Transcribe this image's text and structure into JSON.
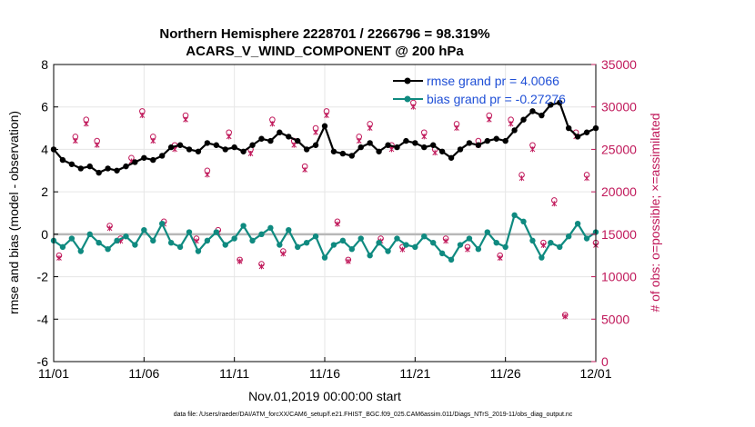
{
  "chart_data": {
    "type": "line",
    "title_line1": "Northern Hemisphere 2228701 / 2266796 = 98.319%",
    "title_line2": "ACARS_V_WIND_COMPONENT @ 200 hPa",
    "xlabel": "Nov.01,2019 00:00:00 start",
    "ylabel_left": "rmse and bias (model - observation)",
    "ylabel_right": "# of obs: o=possible; ×=assimilated",
    "xlim": [
      0,
      30
    ],
    "ylim_left": [
      -6,
      8
    ],
    "ylim_right": [
      0,
      35000
    ],
    "x_ticks": [
      {
        "pos": 0,
        "label": "11/01"
      },
      {
        "pos": 5,
        "label": "11/06"
      },
      {
        "pos": 10,
        "label": "11/11"
      },
      {
        "pos": 15,
        "label": "11/16"
      },
      {
        "pos": 20,
        "label": "11/21"
      },
      {
        "pos": 25,
        "label": "11/26"
      },
      {
        "pos": 30,
        "label": "12/01"
      }
    ],
    "y_ticks_left": [
      "-6",
      "-4",
      "-2",
      "0",
      "2",
      "4",
      "6",
      "8"
    ],
    "y_ticks_right": [
      "0",
      "5000",
      "10000",
      "15000",
      "20000",
      "25000",
      "30000",
      "35000"
    ],
    "grid": true,
    "legend_position": "top-right",
    "series": [
      {
        "name": "rmse grand pr = 4.0066",
        "color": "#000000",
        "x": [
          0,
          0.5,
          1,
          1.5,
          2,
          2.5,
          3,
          3.5,
          4,
          4.5,
          5,
          5.5,
          6,
          6.5,
          7,
          7.5,
          8,
          8.5,
          9,
          9.5,
          10,
          10.5,
          11,
          11.5,
          12,
          12.5,
          13,
          13.5,
          14,
          14.5,
          15,
          15.5,
          16,
          16.5,
          17,
          17.5,
          18,
          18.5,
          19,
          19.5,
          20,
          20.5,
          21,
          21.5,
          22,
          22.5,
          23,
          23.5,
          24,
          24.5,
          25,
          25.5,
          26,
          26.5,
          27,
          27.5,
          28,
          28.5,
          29,
          29.5,
          30
        ],
        "values": [
          4.0,
          3.5,
          3.3,
          3.1,
          3.2,
          2.9,
          3.1,
          3.0,
          3.2,
          3.4,
          3.6,
          3.5,
          3.7,
          4.1,
          4.2,
          4.0,
          3.9,
          4.3,
          4.2,
          4.0,
          4.1,
          3.9,
          4.2,
          4.5,
          4.4,
          4.8,
          4.6,
          4.4,
          4.0,
          4.2,
          5.1,
          3.9,
          3.8,
          3.7,
          4.1,
          4.3,
          3.9,
          4.2,
          4.1,
          4.4,
          4.3,
          4.1,
          4.2,
          3.9,
          3.6,
          4.0,
          4.3,
          4.2,
          4.4,
          4.5,
          4.4,
          4.9,
          5.4,
          5.8,
          5.6,
          6.1,
          6.2,
          5.0,
          4.6,
          4.8,
          5.0
        ]
      },
      {
        "name": "bias grand pr = -0.27276",
        "color": "#0f8a80",
        "x": [
          0,
          0.5,
          1,
          1.5,
          2,
          2.5,
          3,
          3.5,
          4,
          4.5,
          5,
          5.5,
          6,
          6.5,
          7,
          7.5,
          8,
          8.5,
          9,
          9.5,
          10,
          10.5,
          11,
          11.5,
          12,
          12.5,
          13,
          13.5,
          14,
          14.5,
          15,
          15.5,
          16,
          16.5,
          17,
          17.5,
          18,
          18.5,
          19,
          19.5,
          20,
          20.5,
          21,
          21.5,
          22,
          22.5,
          23,
          23.5,
          24,
          24.5,
          25,
          25.5,
          26,
          26.5,
          27,
          27.5,
          28,
          28.5,
          29,
          29.5,
          30
        ],
        "values": [
          -0.3,
          -0.6,
          -0.2,
          -0.8,
          0.0,
          -0.4,
          -0.7,
          -0.3,
          -0.1,
          -0.5,
          0.2,
          -0.3,
          0.5,
          -0.4,
          -0.6,
          0.1,
          -0.8,
          -0.3,
          0.1,
          -0.5,
          -0.2,
          0.4,
          -0.3,
          0.0,
          0.3,
          -0.5,
          0.2,
          -0.6,
          -0.4,
          -0.1,
          -1.1,
          -0.5,
          -0.3,
          -0.7,
          -0.2,
          -1.0,
          -0.4,
          -0.8,
          -0.2,
          -0.5,
          -0.6,
          -0.1,
          -0.4,
          -0.9,
          -1.2,
          -0.5,
          -0.2,
          -0.7,
          0.1,
          -0.4,
          -0.6,
          0.9,
          0.6,
          -0.3,
          -1.1,
          -0.4,
          -0.6,
          -0.1,
          0.5,
          -0.2,
          0.1
        ]
      }
    ],
    "obs_possible": {
      "marker": "o",
      "color": "#c0185a",
      "x": [
        0.3,
        1.2,
        1.8,
        2.4,
        3.1,
        3.7,
        4.3,
        4.9,
        5.5,
        6.1,
        6.7,
        7.3,
        7.9,
        8.5,
        9.1,
        9.7,
        10.3,
        10.9,
        11.5,
        12.1,
        12.7,
        13.3,
        13.9,
        14.5,
        15.1,
        15.7,
        16.3,
        16.9,
        17.5,
        18.1,
        18.7,
        19.3,
        19.9,
        20.5,
        21.1,
        21.7,
        22.3,
        22.9,
        23.5,
        24.1,
        24.7,
        25.3,
        25.9,
        26.5,
        27.1,
        27.7,
        28.3,
        28.9,
        29.5,
        30.0
      ],
      "values": [
        12500,
        26500,
        28500,
        26000,
        16000,
        14500,
        24000,
        29500,
        26500,
        16500,
        25500,
        29000,
        14500,
        22500,
        15500,
        27000,
        12000,
        25000,
        11500,
        28500,
        13000,
        26000,
        23000,
        27500,
        29500,
        16500,
        12000,
        26500,
        28000,
        14500,
        25500,
        13500,
        30500,
        27000,
        25000,
        14500,
        28000,
        13500,
        26000,
        29000,
        12500,
        28500,
        22000,
        25500,
        14000,
        19000,
        5500,
        27000,
        22000,
        14000
      ]
    },
    "obs_assimilated": {
      "marker": "x",
      "color": "#c0185a",
      "x": [
        0.3,
        1.2,
        1.8,
        2.4,
        3.1,
        3.7,
        4.3,
        4.9,
        5.5,
        6.1,
        6.7,
        7.3,
        7.9,
        8.5,
        9.1,
        9.7,
        10.3,
        10.9,
        11.5,
        12.1,
        12.7,
        13.3,
        13.9,
        14.5,
        15.1,
        15.7,
        16.3,
        16.9,
        17.5,
        18.1,
        18.7,
        19.3,
        19.9,
        20.5,
        21.1,
        21.7,
        22.3,
        22.9,
        23.5,
        24.1,
        24.7,
        25.3,
        25.9,
        26.5,
        27.1,
        27.7,
        28.3,
        28.9,
        29.5,
        30.0
      ],
      "values": [
        12200,
        26000,
        28000,
        25500,
        15700,
        14200,
        23600,
        29000,
        26000,
        16200,
        25000,
        28500,
        14200,
        22000,
        15200,
        26500,
        11800,
        24500,
        11200,
        28000,
        12700,
        25500,
        22600,
        27000,
        29000,
        16200,
        11800,
        26000,
        27500,
        14200,
        25000,
        13200,
        30000,
        26500,
        24600,
        14200,
        27500,
        13200,
        25500,
        28500,
        12200,
        28000,
        21600,
        25000,
        13700,
        18600,
        5300,
        26500,
        21600,
        13700
      ]
    },
    "footer": "data file: /Users/raeder/DAI/ATM_forcXX/CAM6_setup/f.e21.FHIST_BGC.f09_025.CAM6assim.011/Diags_NTrS_2019-11/obs_diag_output.nc"
  }
}
